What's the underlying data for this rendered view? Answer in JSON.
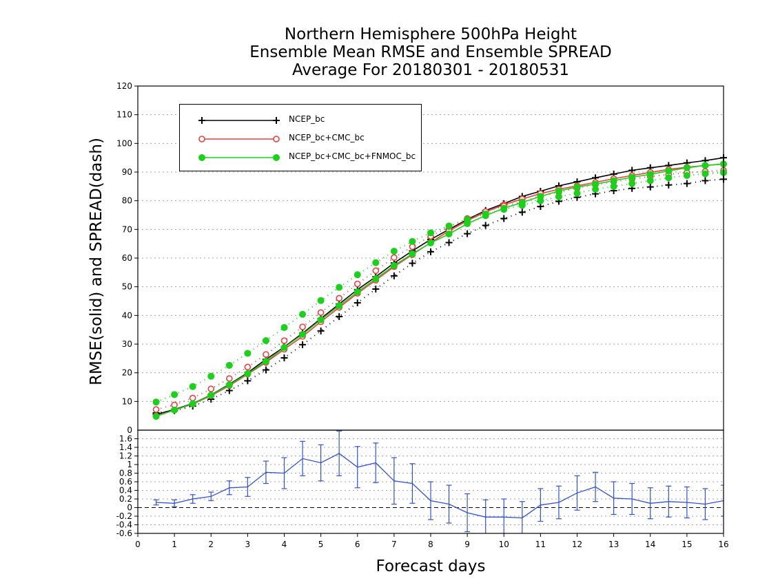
{
  "title_lines": [
    "Northern Hemisphere 500hPa Height",
    "Ensemble Mean RMSE and Ensemble SPREAD",
    "Average For 20180301 - 20180531"
  ],
  "chart_data": [
    {
      "type": "line",
      "title": "Northern Hemisphere 500hPa Height / Ensemble Mean RMSE and Ensemble SPREAD / Average For 20180301 - 20180531",
      "xlabel": "",
      "ylabel": "RMSE(solid) and SPREAD(dash)",
      "xlim": [
        0,
        16
      ],
      "ylim": [
        0,
        120
      ],
      "yticks": [
        10,
        20,
        30,
        40,
        50,
        60,
        70,
        80,
        90,
        100,
        110,
        120
      ],
      "grid": true,
      "legend_position": "top-left",
      "x": [
        0.5,
        1,
        1.5,
        2,
        2.5,
        3,
        3.5,
        4,
        4.5,
        5,
        5.5,
        6,
        6.5,
        7,
        7.5,
        8,
        8.5,
        9,
        9.5,
        10,
        10.5,
        11,
        11.5,
        12,
        12.5,
        13,
        13.5,
        14,
        14.5,
        15,
        15.5,
        16
      ],
      "series": [
        {
          "name": "NCEP_bc",
          "kind": "RMSE",
          "line": "solid",
          "marker": "plus",
          "color": "#000000",
          "values": [
            5.5,
            7.2,
            9.3,
            12.3,
            16.0,
            20.0,
            24.7,
            29.0,
            33.8,
            38.9,
            44.0,
            49.0,
            53.5,
            58.3,
            62.5,
            66.5,
            70.0,
            73.5,
            76.6,
            79.0,
            81.5,
            83.3,
            85.2,
            86.6,
            88.0,
            89.3,
            90.6,
            91.5,
            92.3,
            93.2,
            94.0,
            95.0
          ]
        },
        {
          "name": "NCEP_bc",
          "kind": "SPREAD",
          "line": "dotted",
          "marker": "plus",
          "color": "#000000",
          "values": [
            6.0,
            6.8,
            8.4,
            10.8,
            13.8,
            17.2,
            21.0,
            25.2,
            29.8,
            34.6,
            39.6,
            44.4,
            49.2,
            53.8,
            58.2,
            62.2,
            65.4,
            68.5,
            71.4,
            73.8,
            76.0,
            78.0,
            79.8,
            81.2,
            82.4,
            83.5,
            84.3,
            84.8,
            85.5,
            86.0,
            87.0,
            87.5
          ]
        },
        {
          "name": "NCEP_bc+CMC_bc",
          "kind": "RMSE",
          "line": "solid",
          "marker": "open-circle",
          "color": "#f03c3c",
          "values": [
            5.0,
            7.0,
            9.1,
            12.0,
            15.5,
            19.5,
            23.6,
            28.2,
            32.7,
            37.8,
            42.8,
            47.7,
            52.3,
            57.0,
            61.2,
            65.4,
            69.5,
            73.0,
            76.1,
            78.6,
            80.6,
            82.5,
            84.0,
            85.2,
            86.4,
            87.7,
            88.8,
            89.9,
            90.9,
            91.7,
            92.3,
            92.8
          ]
        },
        {
          "name": "NCEP_bc+CMC_bc",
          "kind": "SPREAD",
          "line": "dotted",
          "marker": "open-circle",
          "color": "#f03c3c",
          "values": [
            7.2,
            8.8,
            11.2,
            14.4,
            18.0,
            22.0,
            26.4,
            31.2,
            36.0,
            41.0,
            46.0,
            51.0,
            55.6,
            60.2,
            64.0,
            67.6,
            71.0,
            73.8,
            76.2,
            78.2,
            79.6,
            81.6,
            83.0,
            84.4,
            85.6,
            86.6,
            87.6,
            88.4,
            89.2,
            89.8,
            90.2,
            90.6
          ]
        },
        {
          "name": "NCEP_bc+CMC_bc+FNMOC_bc",
          "kind": "RMSE",
          "line": "solid",
          "marker": "filled-circle",
          "color": "#19d219",
          "values": [
            4.8,
            7.0,
            9.2,
            12.2,
            15.8,
            19.7,
            24.0,
            28.8,
            33.4,
            38.5,
            43.4,
            48.2,
            52.8,
            57.4,
            61.5,
            65.3,
            68.4,
            72.0,
            74.8,
            77.4,
            79.4,
            81.5,
            83.4,
            84.8,
            85.8,
            87.0,
            88.2,
            89.2,
            90.4,
            91.5,
            92.3,
            92.8
          ]
        },
        {
          "name": "NCEP_bc+CMC_bc+FNMOC_bc",
          "kind": "SPREAD",
          "line": "dotted",
          "marker": "filled-circle",
          "color": "#19d219",
          "values": [
            9.8,
            12.4,
            15.2,
            18.8,
            22.6,
            26.8,
            31.2,
            35.8,
            40.4,
            45.2,
            49.8,
            54.2,
            58.4,
            62.4,
            65.8,
            68.8,
            71.2,
            73.4,
            75.4,
            77.0,
            78.4,
            80.0,
            81.4,
            82.6,
            84.0,
            85.0,
            86.0,
            87.0,
            88.0,
            88.8,
            89.4,
            89.8
          ]
        }
      ]
    },
    {
      "type": "line",
      "title": "",
      "xlabel": "Forecast days",
      "ylabel": "",
      "xlim": [
        0,
        16
      ],
      "xticks": [
        0,
        1,
        2,
        3,
        4,
        5,
        6,
        7,
        8,
        9,
        10,
        11,
        12,
        13,
        14,
        15,
        16
      ],
      "ylim": [
        -0.6,
        1.8
      ],
      "yticks": [
        -0.6,
        -0.4,
        -0.2,
        0,
        0.2,
        0.4,
        0.6,
        0.8,
        1,
        1.2,
        1.4,
        1.6
      ],
      "grid": true,
      "zero_line": "dashed",
      "x": [
        0.5,
        1,
        1.5,
        2,
        2.5,
        3,
        3.5,
        4,
        4.5,
        5,
        5.5,
        6,
        6.5,
        7,
        7.5,
        8,
        8.5,
        9,
        9.5,
        10,
        10.5,
        11,
        11.5,
        12,
        12.5,
        13,
        13.5,
        14,
        14.5,
        15,
        15.5,
        16
      ],
      "series": [
        {
          "name": "",
          "color": "#3050d8",
          "error_bars": true,
          "values": [
            0.12,
            0.1,
            0.2,
            0.26,
            0.46,
            0.48,
            0.82,
            0.8,
            1.14,
            1.04,
            1.26,
            0.94,
            1.04,
            0.62,
            0.56,
            0.16,
            0.08,
            -0.12,
            -0.22,
            -0.22,
            -0.24,
            0.06,
            0.12,
            0.34,
            0.48,
            0.22,
            0.2,
            0.1,
            0.14,
            0.12,
            0.08,
            0.16
          ],
          "err": [
            0.06,
            0.08,
            0.1,
            0.1,
            0.16,
            0.22,
            0.26,
            0.36,
            0.4,
            0.42,
            0.52,
            0.48,
            0.46,
            0.54,
            0.46,
            0.44,
            0.44,
            0.44,
            0.4,
            0.42,
            0.38,
            0.38,
            0.38,
            0.4,
            0.34,
            0.38,
            0.36,
            0.36,
            0.36,
            0.36,
            0.36,
            0.36
          ]
        }
      ]
    }
  ],
  "legend": [
    {
      "label": "NCEP_bc",
      "color": "#000000",
      "marker": "plus"
    },
    {
      "label": "NCEP_bc+CMC_bc",
      "color": "#f03c3c",
      "marker": "open-circle"
    },
    {
      "label": "NCEP_bc+CMC_bc+FNMOC_bc",
      "color": "#19d219",
      "marker": "filled-circle"
    }
  ]
}
